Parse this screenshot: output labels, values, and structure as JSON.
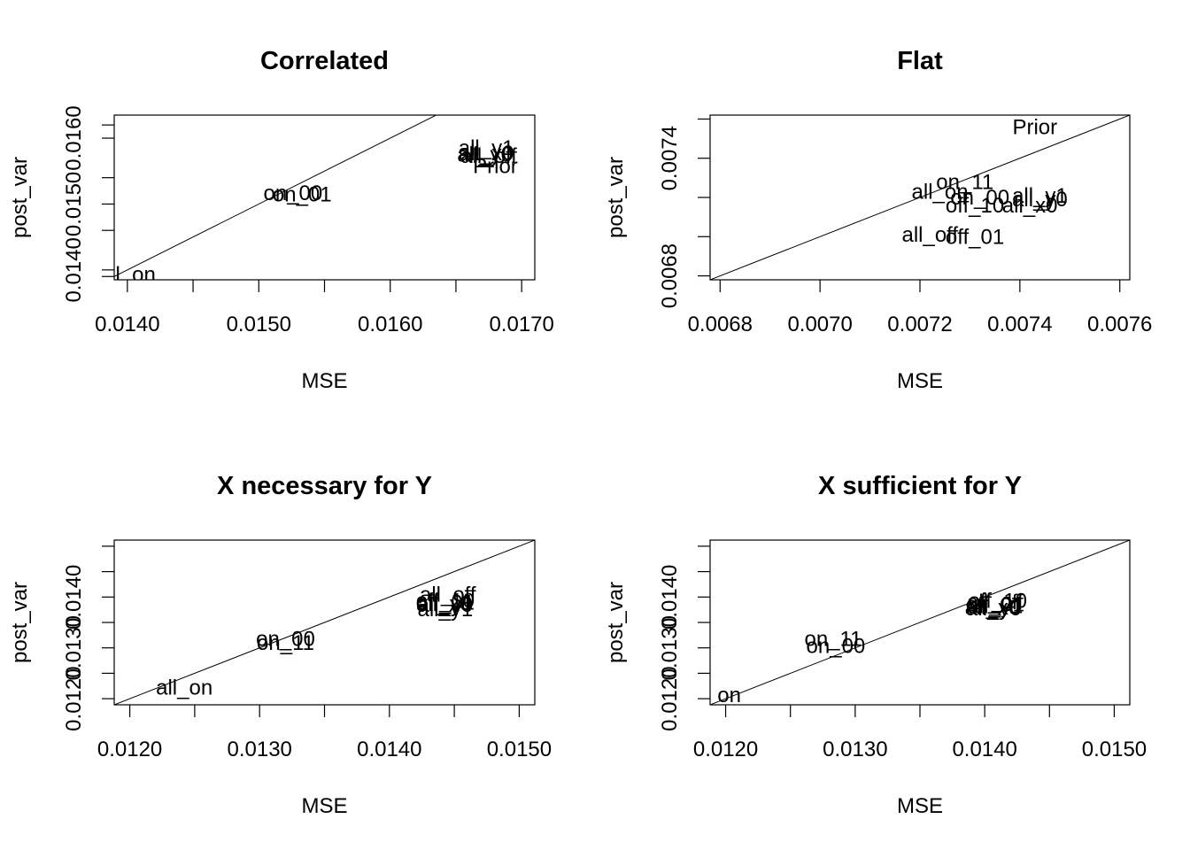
{
  "chart_data": [
    {
      "type": "scatter",
      "title": "Correlated",
      "xlabel": "MSE",
      "ylabel": "post_var",
      "xlim": [
        0.0139,
        0.0171
      ],
      "ylim": [
        0.01385,
        0.01635
      ],
      "xticks": [
        0.014,
        0.0145,
        0.015,
        0.0155,
        0.016,
        0.0165,
        0.017
      ],
      "xtick_labels": [
        "0.0140",
        "",
        "0.0150",
        "",
        "0.0160",
        "",
        "0.0170"
      ],
      "yticks": [
        0.0139,
        0.014,
        0.0146,
        0.015,
        0.0154,
        0.016,
        0.0162
      ],
      "ytick_labels": [
        "",
        "0.0140",
        "",
        "0.0150",
        "",
        "0.0160",
        ""
      ],
      "diagonal": true,
      "points": [
        {
          "label": "all_on",
          "x": 0.014,
          "y": 0.01393
        },
        {
          "label": "on_00",
          "x": 0.01526,
          "y": 0.01517
        },
        {
          "label": "on_01",
          "x": 0.01533,
          "y": 0.01515
        },
        {
          "label": "all_y1",
          "x": 0.01673,
          "y": 0.01585
        },
        {
          "label": "all_off",
          "x": 0.01675,
          "y": 0.01573
        },
        {
          "label": "all_x0",
          "x": 0.01673,
          "y": 0.01577
        },
        {
          "label": "all_y0",
          "x": 0.01672,
          "y": 0.01575
        },
        {
          "label": "Prior",
          "x": 0.0168,
          "y": 0.01558
        }
      ]
    },
    {
      "type": "scatter",
      "title": "Flat",
      "xlabel": "MSE",
      "ylabel": "post_var",
      "xlim": [
        0.00678,
        0.00762
      ],
      "ylim": [
        0.00678,
        0.00762
      ],
      "xticks": [
        0.0068,
        0.007,
        0.0072,
        0.0074,
        0.0076
      ],
      "xtick_labels": [
        "0.0068",
        "0.0070",
        "0.0072",
        "0.0074",
        "0.0076"
      ],
      "yticks": [
        0.0068,
        0.007,
        0.0072,
        0.0074,
        0.0076
      ],
      "ytick_labels": [
        "0.0068",
        "",
        "",
        "0.0074",
        ""
      ],
      "diagonal": true,
      "points": [
        {
          "label": "Prior",
          "x": 0.00743,
          "y": 0.00756
        },
        {
          "label": "on_11",
          "x": 0.00729,
          "y": 0.00728
        },
        {
          "label": "all_on",
          "x": 0.00724,
          "y": 0.00723
        },
        {
          "label": "on_00",
          "x": 0.00732,
          "y": 0.0072
        },
        {
          "label": "all_y1",
          "x": 0.00744,
          "y": 0.00721
        },
        {
          "label": "all_y0",
          "x": 0.00744,
          "y": 0.00719
        },
        {
          "label": "off_10",
          "x": 0.00731,
          "y": 0.00716
        },
        {
          "label": "all_x0",
          "x": 0.00742,
          "y": 0.00716
        },
        {
          "label": "all_off",
          "x": 0.00722,
          "y": 0.00701
        },
        {
          "label": "off_01",
          "x": 0.00731,
          "y": 0.007
        }
      ]
    },
    {
      "type": "scatter",
      "title": "X necessary for Y",
      "xlabel": "MSE",
      "ylabel": "post_var",
      "xlim": [
        0.01188,
        0.01512
      ],
      "ylim": [
        0.01188,
        0.01512
      ],
      "xticks": [
        0.012,
        0.0125,
        0.013,
        0.0135,
        0.014,
        0.0145,
        0.015
      ],
      "xtick_labels": [
        "0.0120",
        "",
        "0.0130",
        "",
        "0.0140",
        "",
        "0.0150"
      ],
      "yticks": [
        0.012,
        0.0125,
        0.013,
        0.0135,
        0.014,
        0.0145,
        0.015
      ],
      "ytick_labels": [
        "0.0120",
        "",
        "0.0130",
        "",
        "0.0140",
        "",
        ""
      ],
      "diagonal": true,
      "points": [
        {
          "label": "all_on",
          "x": 0.01242,
          "y": 0.01222
        },
        {
          "label": "on_00",
          "x": 0.0132,
          "y": 0.01318
        },
        {
          "label": "on_11",
          "x": 0.0132,
          "y": 0.0131
        },
        {
          "label": "all_off",
          "x": 0.01445,
          "y": 0.01405
        },
        {
          "label": "off_10",
          "x": 0.01443,
          "y": 0.01393
        },
        {
          "label": "off_01",
          "x": 0.01443,
          "y": 0.01389
        },
        {
          "label": "all_x0",
          "x": 0.01442,
          "y": 0.01387
        },
        {
          "label": "all_y0",
          "x": 0.01443,
          "y": 0.01385
        },
        {
          "label": "all_y1",
          "x": 0.01443,
          "y": 0.01376
        }
      ]
    },
    {
      "type": "scatter",
      "title": "X sufficient for Y",
      "xlabel": "MSE",
      "ylabel": "post_var",
      "xlim": [
        0.01188,
        0.01512
      ],
      "ylim": [
        0.01188,
        0.01512
      ],
      "xticks": [
        0.012,
        0.0125,
        0.013,
        0.0135,
        0.014,
        0.0145,
        0.015
      ],
      "xtick_labels": [
        "0.0120",
        "",
        "0.0130",
        "",
        "0.0140",
        "",
        "0.0150"
      ],
      "yticks": [
        0.012,
        0.0125,
        0.013,
        0.0135,
        0.014,
        0.0145,
        0.015
      ],
      "ytick_labels": [
        "0.0120",
        "",
        "0.0130",
        "",
        "0.0140",
        "",
        ""
      ],
      "diagonal": true,
      "points": [
        {
          "label": "all_on",
          "x": 0.0119,
          "y": 0.01207
        },
        {
          "label": "on_11",
          "x": 0.01283,
          "y": 0.01318
        },
        {
          "label": "on_00",
          "x": 0.01285,
          "y": 0.01304
        },
        {
          "label": "off_10",
          "x": 0.0141,
          "y": 0.01393
        },
        {
          "label": "all_off",
          "x": 0.01408,
          "y": 0.0139
        },
        {
          "label": "off_01",
          "x": 0.01408,
          "y": 0.01386
        },
        {
          "label": "all_y1",
          "x": 0.01408,
          "y": 0.01382
        },
        {
          "label": "all_x0",
          "x": 0.01406,
          "y": 0.0138
        },
        {
          "label": "all_y0",
          "x": 0.01407,
          "y": 0.01378
        }
      ]
    }
  ]
}
